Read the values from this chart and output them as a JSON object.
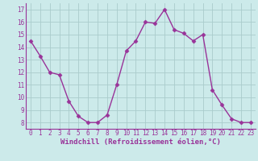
{
  "x": [
    0,
    1,
    2,
    3,
    4,
    5,
    6,
    7,
    8,
    9,
    10,
    11,
    12,
    13,
    14,
    15,
    16,
    17,
    18,
    19,
    20,
    21,
    22,
    23
  ],
  "y": [
    14.5,
    13.3,
    12.0,
    11.8,
    9.7,
    8.5,
    8.0,
    8.0,
    8.6,
    11.0,
    13.7,
    14.5,
    16.0,
    15.9,
    17.0,
    15.4,
    15.1,
    14.5,
    15.0,
    10.6,
    9.4,
    8.3,
    8.0,
    8.0
  ],
  "line_color": "#993399",
  "marker": "D",
  "markersize": 2.5,
  "linewidth": 1.0,
  "xlabel": "Windchill (Refroidissement éolien,°C)",
  "xlabel_fontsize": 6.5,
  "ylabel_ticks": [
    8,
    9,
    10,
    11,
    12,
    13,
    14,
    15,
    16,
    17
  ],
  "xtick_labels": [
    "0",
    "1",
    "2",
    "3",
    "4",
    "5",
    "6",
    "7",
    "8",
    "9",
    "10",
    "11",
    "12",
    "13",
    "14",
    "15",
    "16",
    "17",
    "18",
    "19",
    "20",
    "21",
    "22",
    "23"
  ],
  "ylim": [
    7.5,
    17.5
  ],
  "xlim": [
    -0.5,
    23.5
  ],
  "bg_color": "#cceaea",
  "grid_color": "#aacccc",
  "tick_color": "#993399",
  "tick_fontsize": 5.5,
  "label_color": "#993399"
}
